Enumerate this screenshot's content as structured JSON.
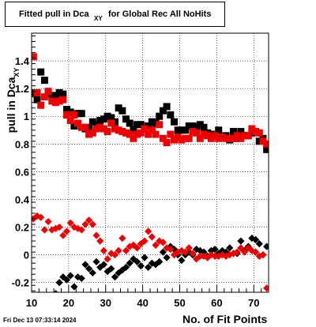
{
  "chart_data": {
    "type": "scatter",
    "title": "Fitted pull in Dca",
    "title_subscript": "XY",
    "title_suffix": "for Global Rec All NoHits",
    "xlabel": "No. of Fit Points",
    "ylabel": "pull in Dca",
    "ylabel_subscript": "XY",
    "xlim": [
      10,
      74
    ],
    "ylim": [
      -0.27,
      1.6
    ],
    "xticks": [
      10,
      20,
      30,
      40,
      50,
      60,
      70
    ],
    "yticks": [
      -0.2,
      0,
      0.2,
      0.4,
      0.6,
      0.8,
      1,
      1.2,
      1.4
    ],
    "grid": true,
    "series": [
      {
        "color": "#000000",
        "marker": "square",
        "points": [
          [
            10.5,
            1.17
          ],
          [
            11.5,
            1.12
          ],
          [
            12.5,
            1.32
          ],
          [
            13.5,
            1.26
          ],
          [
            14.5,
            1.17
          ],
          [
            15.5,
            1.15
          ],
          [
            16.5,
            1.15
          ],
          [
            17.5,
            1.17
          ],
          [
            18.5,
            1.16
          ],
          [
            19.5,
            1.05
          ],
          [
            20.5,
            1.03
          ],
          [
            21.5,
            0.93
          ],
          [
            22.5,
            1.02
          ],
          [
            23.5,
            1.02
          ],
          [
            24.5,
            0.91
          ],
          [
            25.5,
            0.92
          ],
          [
            26.5,
            0.96
          ],
          [
            27.5,
            0.94
          ],
          [
            28.5,
            0.97
          ],
          [
            29.5,
            0.98
          ],
          [
            30.5,
            1.0
          ],
          [
            31.5,
            0.99
          ],
          [
            32.5,
            0.96
          ],
          [
            33.5,
            1.06
          ],
          [
            34.5,
            1.04
          ],
          [
            35.5,
            0.98
          ],
          [
            36.5,
            0.95
          ],
          [
            37.5,
            0.9
          ],
          [
            38.5,
            0.94
          ],
          [
            39.5,
            0.94
          ],
          [
            40.5,
            0.91
          ],
          [
            41.5,
            0.93
          ],
          [
            42.5,
            0.96
          ],
          [
            43.5,
            0.95
          ],
          [
            44.5,
            1.0
          ],
          [
            45.5,
            1.04
          ],
          [
            46.5,
            1.07
          ],
          [
            47.5,
            1.01
          ],
          [
            48.5,
            0.96
          ],
          [
            49.5,
            0.9
          ],
          [
            50.5,
            0.9
          ],
          [
            51.5,
            0.9
          ],
          [
            52.5,
            0.93
          ],
          [
            53.5,
            0.93
          ],
          [
            54.5,
            0.92
          ],
          [
            55.5,
            0.94
          ],
          [
            56.5,
            0.92
          ],
          [
            57.5,
            0.88
          ],
          [
            58.5,
            0.87
          ],
          [
            59.5,
            0.86
          ],
          [
            60.5,
            0.9
          ],
          [
            61.5,
            0.85
          ],
          [
            62.5,
            0.86
          ],
          [
            63.5,
            0.83
          ],
          [
            64.5,
            0.89
          ],
          [
            65.5,
            0.84
          ],
          [
            66.5,
            0.89
          ],
          [
            67.5,
            0.86
          ],
          [
            68.5,
            0.86
          ],
          [
            69.5,
            0.88
          ],
          [
            70.5,
            0.89
          ],
          [
            71.5,
            0.82
          ],
          [
            72.5,
            0.84
          ],
          [
            73.5,
            0.76
          ]
        ]
      },
      {
        "color": "#ee0000",
        "marker": "square",
        "points": [
          [
            10.5,
            1.43
          ],
          [
            11.5,
            1.17
          ],
          [
            12.5,
            1.08
          ],
          [
            13.5,
            1.14
          ],
          [
            14.5,
            1.18
          ],
          [
            15.5,
            1.11
          ],
          [
            16.5,
            1.1
          ],
          [
            17.5,
            1.11
          ],
          [
            18.5,
            1.12
          ],
          [
            19.5,
            1.01
          ],
          [
            20.5,
            0.97
          ],
          [
            21.5,
            1.01
          ],
          [
            22.5,
            0.95
          ],
          [
            23.5,
            0.92
          ],
          [
            24.5,
            0.92
          ],
          [
            25.5,
            0.87
          ],
          [
            26.5,
            0.88
          ],
          [
            27.5,
            0.91
          ],
          [
            28.5,
            0.92
          ],
          [
            29.5,
            0.91
          ],
          [
            30.5,
            0.89
          ],
          [
            31.5,
            0.95
          ],
          [
            32.5,
            0.91
          ],
          [
            33.5,
            0.9
          ],
          [
            34.5,
            0.89
          ],
          [
            35.5,
            0.88
          ],
          [
            36.5,
            0.87
          ],
          [
            37.5,
            0.84
          ],
          [
            38.5,
            0.87
          ],
          [
            39.5,
            0.88
          ],
          [
            40.5,
            0.91
          ],
          [
            41.5,
            0.87
          ],
          [
            42.5,
            0.9
          ],
          [
            43.5,
            0.87
          ],
          [
            44.5,
            0.94
          ],
          [
            45.5,
            0.84
          ],
          [
            46.5,
            0.81
          ],
          [
            47.5,
            0.87
          ],
          [
            48.5,
            0.83
          ],
          [
            49.5,
            0.85
          ],
          [
            50.5,
            0.83
          ],
          [
            51.5,
            0.84
          ],
          [
            52.5,
            0.84
          ],
          [
            53.5,
            0.89
          ],
          [
            54.5,
            0.88
          ],
          [
            55.5,
            0.84
          ],
          [
            56.5,
            0.87
          ],
          [
            57.5,
            0.86
          ],
          [
            58.5,
            0.84
          ],
          [
            59.5,
            0.86
          ],
          [
            60.5,
            0.84
          ],
          [
            61.5,
            0.85
          ],
          [
            62.5,
            0.84
          ],
          [
            63.5,
            0.84
          ],
          [
            64.5,
            0.84
          ],
          [
            65.5,
            0.86
          ],
          [
            66.5,
            0.84
          ],
          [
            67.5,
            0.86
          ],
          [
            68.5,
            0.86
          ],
          [
            69.5,
            0.91
          ],
          [
            70.5,
            0.89
          ],
          [
            71.5,
            0.88
          ],
          [
            72.5,
            0.82
          ],
          [
            73.5,
            0.8
          ]
        ]
      },
      {
        "color": "#000000",
        "marker": "diamond",
        "points": [
          [
            16.5,
            -0.28
          ],
          [
            17.5,
            -0.2
          ],
          [
            18.5,
            -0.16
          ],
          [
            19.5,
            -0.18
          ],
          [
            20.5,
            -0.15
          ],
          [
            21.5,
            -0.23
          ],
          [
            22.5,
            -0.16
          ],
          [
            23.5,
            -0.17
          ],
          [
            24.5,
            -0.07
          ],
          [
            25.5,
            -0.1
          ],
          [
            26.5,
            -0.13
          ],
          [
            27.5,
            -0.05
          ],
          [
            28.5,
            -0.09
          ],
          [
            29.5,
            -0.07
          ],
          [
            30.5,
            -0.12
          ],
          [
            31.5,
            -0.1
          ],
          [
            32.5,
            -0.16
          ],
          [
            33.5,
            -0.13
          ],
          [
            34.5,
            -0.11
          ],
          [
            35.5,
            -0.09
          ],
          [
            36.5,
            -0.06
          ],
          [
            37.5,
            -0.03
          ],
          [
            38.5,
            -0.05
          ],
          [
            39.5,
            -0.08
          ],
          [
            40.5,
            -0.02
          ],
          [
            41.5,
            -0.09
          ],
          [
            42.5,
            -0.06
          ],
          [
            43.5,
            -0.07
          ],
          [
            44.5,
            -0.05
          ],
          [
            45.5,
            0.02
          ],
          [
            46.5,
            -0.02
          ],
          [
            47.5,
            0.06
          ],
          [
            48.5,
            0.04
          ],
          [
            49.5,
            0.0
          ],
          [
            50.5,
            -0.04
          ],
          [
            51.5,
            0.0
          ],
          [
            52.5,
            0.02
          ],
          [
            53.5,
            0.0
          ],
          [
            54.5,
            0.04
          ],
          [
            55.5,
            0.03
          ],
          [
            56.5,
            0.02
          ],
          [
            57.5,
            -0.01
          ],
          [
            58.5,
            0.03
          ],
          [
            59.5,
            0.04
          ],
          [
            60.5,
            0.01
          ],
          [
            61.5,
            0.03
          ],
          [
            62.5,
            0.02
          ],
          [
            63.5,
            0.05
          ],
          [
            64.5,
            0.01
          ],
          [
            65.5,
            0.01
          ],
          [
            66.5,
            0.1
          ],
          [
            67.5,
            0.03
          ],
          [
            68.5,
            0.06
          ],
          [
            69.5,
            0.12
          ],
          [
            70.5,
            0.11
          ],
          [
            71.5,
            0.08
          ],
          [
            72.5,
            0.0
          ],
          [
            73.5,
            0.06
          ]
        ]
      },
      {
        "color": "#ee0000",
        "marker": "diamond",
        "points": [
          [
            10.5,
            0.26
          ],
          [
            11.5,
            0.28
          ],
          [
            12.5,
            0.27
          ],
          [
            13.5,
            0.18
          ],
          [
            14.5,
            0.24
          ],
          [
            15.5,
            0.18
          ],
          [
            16.5,
            0.19
          ],
          [
            17.5,
            0.2
          ],
          [
            18.5,
            0.14
          ],
          [
            19.5,
            0.17
          ],
          [
            20.5,
            0.23
          ],
          [
            21.5,
            0.2
          ],
          [
            22.5,
            0.19
          ],
          [
            23.5,
            0.18
          ],
          [
            24.5,
            0.22
          ],
          [
            25.5,
            0.25
          ],
          [
            26.5,
            0.22
          ],
          [
            27.5,
            0.14
          ],
          [
            28.5,
            0.1
          ],
          [
            29.5,
            0.03
          ],
          [
            30.5,
            -0.03
          ],
          [
            31.5,
            0.01
          ],
          [
            32.5,
            0.0
          ],
          [
            33.5,
            0.03
          ],
          [
            34.5,
            0.12
          ],
          [
            35.5,
            0.03
          ],
          [
            36.5,
            0.06
          ],
          [
            37.5,
            0.07
          ],
          [
            38.5,
            0.05
          ],
          [
            39.5,
            0.08
          ],
          [
            40.5,
            0.1
          ],
          [
            41.5,
            0.17
          ],
          [
            42.5,
            0.13
          ],
          [
            43.5,
            0.07
          ],
          [
            44.5,
            0.1
          ],
          [
            45.5,
            0.09
          ],
          [
            46.5,
            0.05
          ],
          [
            47.5,
            0.04
          ],
          [
            48.5,
            0.0
          ],
          [
            49.5,
            0.02
          ],
          [
            50.5,
            0.03
          ],
          [
            51.5,
            0.02
          ],
          [
            52.5,
            0.05
          ],
          [
            53.5,
            0.01
          ],
          [
            54.5,
            -0.03
          ],
          [
            55.5,
            -0.01
          ],
          [
            56.5,
            -0.01
          ],
          [
            57.5,
            -0.02
          ],
          [
            58.5,
            0.0
          ],
          [
            59.5,
            -0.01
          ],
          [
            60.5,
            -0.01
          ],
          [
            61.5,
            0.0
          ],
          [
            62.5,
            -0.01
          ],
          [
            63.5,
            0.0
          ],
          [
            64.5,
            0.01
          ],
          [
            65.5,
            0.02
          ],
          [
            66.5,
            0.05
          ],
          [
            67.5,
            0.02
          ],
          [
            68.5,
            0.05
          ],
          [
            69.5,
            0.03
          ],
          [
            70.5,
            0.02
          ],
          [
            71.5,
            -0.01
          ],
          [
            72.5,
            0.0
          ],
          [
            73.5,
            -0.24
          ]
        ]
      }
    ]
  },
  "footer": {
    "datetime": "Fri Dec 13 07:33:14 2024"
  }
}
